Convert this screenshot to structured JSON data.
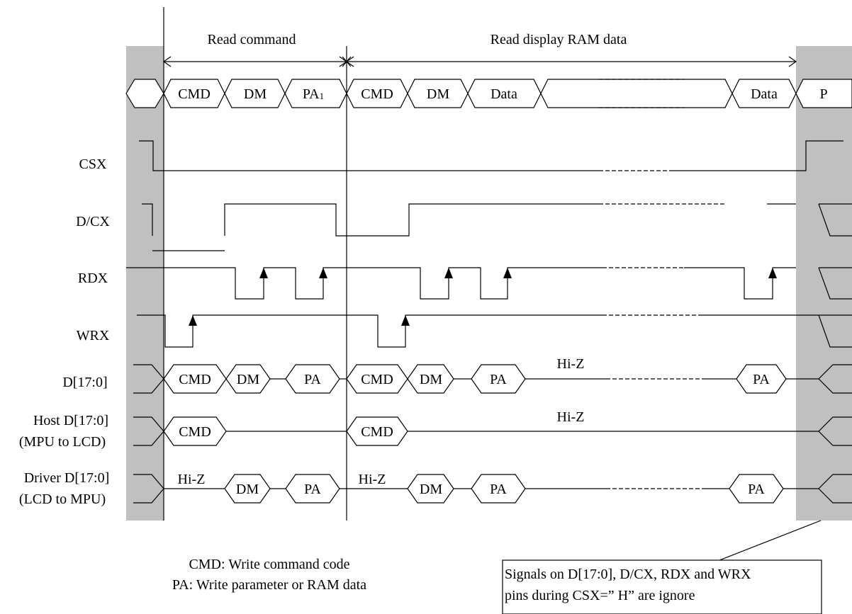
{
  "phases": {
    "read_command": "Read command",
    "read_display_ram": "Read display RAM data"
  },
  "top_row": [
    "CMD",
    "DM",
    "PA",
    "CMD",
    "DM",
    "Data",
    "Data",
    "P"
  ],
  "top_subscript": "1",
  "signals": {
    "csx": "CSX",
    "dcx": "D/CX",
    "rdx": "RDX",
    "wrx": "WRX",
    "d": "D[17:0]",
    "host_1": "Host D[17:0]",
    "host_2": "(MPU to LCD)",
    "driver_1": "Driver D[17:0]",
    "driver_2": "(LCD to MPU)"
  },
  "d_bus": [
    "CMD",
    "DM",
    "PA",
    "CMD",
    "DM",
    "PA",
    "PA"
  ],
  "host_bus": [
    "CMD",
    "CMD"
  ],
  "driver_bus": [
    "DM",
    "PA",
    "DM",
    "PA",
    "PA"
  ],
  "hiz": "Hi-Z",
  "legend": {
    "cmd": "CMD: Write command code",
    "pa": "PA: Write parameter or RAM data"
  },
  "note": {
    "line1": "Signals on D[17:0], D/CX, RDX and WRX",
    "line2": "pins during CSX=” H” are ignore"
  }
}
